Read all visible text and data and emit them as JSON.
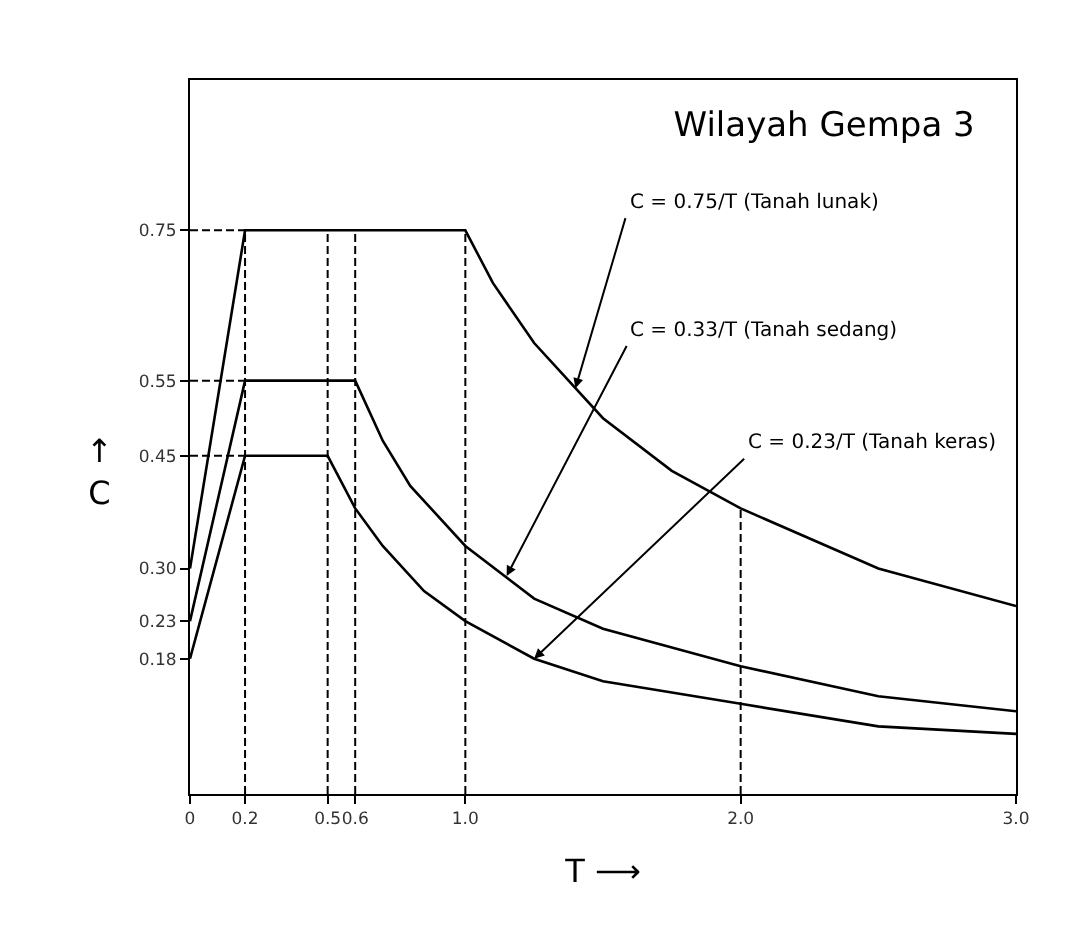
{
  "chart_data": {
    "type": "line",
    "title": "Wilayah Gempa 3",
    "xlabel": "T ⟶",
    "ylabel": "↑\nC",
    "xlim": [
      0,
      3.0
    ],
    "ylim": [
      0,
      0.95
    ],
    "xticks": [
      0,
      0.2,
      0.5,
      0.6,
      {
        "value": 1.0,
        "label": "1.0"
      },
      {
        "value": 2.0,
        "label": "2.0"
      },
      {
        "value": 3.0,
        "label": "3.0"
      }
    ],
    "yticks": [
      0.18,
      0.23,
      {
        "value": 0.3,
        "label": "0.30"
      },
      0.45,
      0.55,
      0.75
    ],
    "grid": false,
    "marker": "none",
    "line_style": "solid",
    "series": [
      {
        "color": "#000000",
        "x": [
          0,
          0.2,
          1.0,
          1.1,
          1.25,
          1.5,
          1.75,
          2.0,
          2.5,
          3.0
        ],
        "values": [
          0.3,
          0.75,
          0.75,
          0.68,
          0.6,
          0.5,
          0.43,
          0.38,
          0.3,
          0.25
        ]
      },
      {
        "color": "#000000",
        "x": [
          0,
          0.2,
          0.6,
          0.7,
          0.8,
          1.0,
          1.25,
          1.5,
          2.0,
          2.5,
          3.0
        ],
        "values": [
          0.23,
          0.55,
          0.55,
          0.47,
          0.41,
          0.33,
          0.26,
          0.22,
          0.17,
          0.13,
          0.11
        ]
      },
      {
        "color": "#000000",
        "x": [
          0,
          0.2,
          0.5,
          0.6,
          0.7,
          0.85,
          1.0,
          1.25,
          1.5,
          2.0,
          2.5,
          3.0
        ],
        "values": [
          0.18,
          0.45,
          0.45,
          0.38,
          0.33,
          0.27,
          0.23,
          0.18,
          0.15,
          0.12,
          0.09,
          0.08
        ]
      },
      {
        "color": "#000000",
        "line_style": "dashed",
        "x": [
          0,
          0.2
        ],
        "values": [
          0.75,
          0.75
        ]
      },
      {
        "color": "#000000",
        "line_style": "dashed",
        "x": [
          0,
          0.2
        ],
        "values": [
          0.55,
          0.55
        ]
      },
      {
        "color": "#000000",
        "line_style": "dashed",
        "x": [
          0,
          0.2
        ],
        "values": [
          0.45,
          0.45
        ]
      }
    ],
    "ref_lines": [
      {
        "axis": "x",
        "value": 0.2,
        "line_style": "dashed",
        "color": "#000000"
      },
      {
        "axis": "x",
        "value": 0.5,
        "line_style": "dashed",
        "color": "#000000"
      },
      {
        "axis": "x",
        "value": 0.6,
        "line_style": "dashed",
        "color": "#000000"
      },
      {
        "axis": "x",
        "value": 1.0,
        "line_style": "dashed",
        "color": "#000000"
      },
      {
        "axis": "x",
        "value": 2.0,
        "line_style": "dashed",
        "color": "#000000"
      }
    ],
    "annotations": [
      {
        "text": "C = 0.75/T (Tanah lunak)",
        "x": 1.4,
        "y": 0.54
      },
      {
        "text": "C = 0.33/T (Tanah sedang)",
        "x": 1.15,
        "y": 0.29
      },
      {
        "text": "C = 0.23/T (Tanah keras)",
        "x": 1.25,
        "y": 0.18
      }
    ]
  }
}
